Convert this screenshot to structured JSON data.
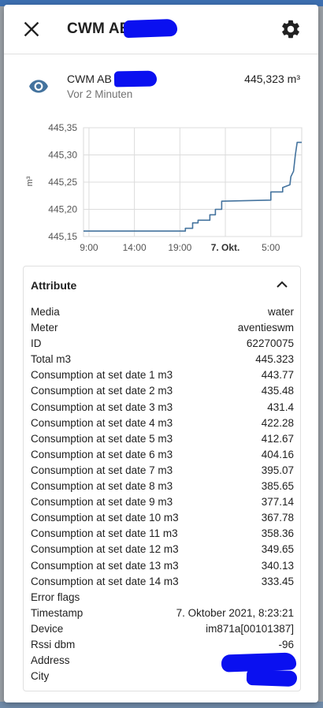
{
  "dialog": {
    "title": "CWM AB",
    "icons": {
      "close": "close-icon",
      "settings": "gear-icon"
    }
  },
  "entity": {
    "name": "CWM AB",
    "last_changed": "Vor 2 Minuten",
    "state": "445,323 m³",
    "icon": "eye-icon"
  },
  "chart_data": {
    "type": "line",
    "ylabel": "m³",
    "ylim": [
      445.15,
      445.35
    ],
    "y_ticks": [
      "445,35",
      "445,30",
      "445,25",
      "445,20",
      "445,15"
    ],
    "x_ticks": [
      "9:00",
      "14:00",
      "19:00",
      "7. Okt.",
      "5:00"
    ],
    "x_ticks_bold": [
      false,
      false,
      false,
      true,
      false
    ],
    "x_tick_hours": [
      0,
      5,
      10,
      15,
      20
    ],
    "xlim_hours": [
      -0.6,
      23.4
    ],
    "series": [
      {
        "color": "#44739e",
        "points": [
          [
            -0.6,
            445.16
          ],
          [
            10.6,
            445.16
          ],
          [
            10.6,
            445.165
          ],
          [
            11.4,
            445.165
          ],
          [
            11.4,
            445.175
          ],
          [
            12.0,
            445.175
          ],
          [
            12.0,
            445.18
          ],
          [
            13.3,
            445.18
          ],
          [
            13.3,
            445.19
          ],
          [
            13.9,
            445.19
          ],
          [
            13.9,
            445.2
          ],
          [
            14.6,
            445.2
          ],
          [
            14.6,
            445.215
          ],
          [
            20.0,
            445.217
          ],
          [
            20.0,
            445.232
          ],
          [
            21.3,
            445.232
          ],
          [
            21.3,
            445.24
          ],
          [
            22.1,
            445.245
          ],
          [
            22.2,
            445.26
          ],
          [
            22.5,
            445.27
          ],
          [
            22.7,
            445.3
          ],
          [
            22.9,
            445.323
          ],
          [
            23.4,
            445.323
          ]
        ]
      }
    ]
  },
  "attributes": {
    "title": "Attribute",
    "rows": [
      {
        "key": "Media",
        "value": "water"
      },
      {
        "key": "Meter",
        "value": "aventieswm"
      },
      {
        "key": "ID",
        "value": "62270075"
      },
      {
        "key": "Total m3",
        "value": "445.323"
      },
      {
        "key": "Consumption at set date 1 m3",
        "value": "443.77"
      },
      {
        "key": "Consumption at set date 2 m3",
        "value": "435.48"
      },
      {
        "key": "Consumption at set date 3 m3",
        "value": "431.4"
      },
      {
        "key": "Consumption at set date 4 m3",
        "value": "422.28"
      },
      {
        "key": "Consumption at set date 5 m3",
        "value": "412.67"
      },
      {
        "key": "Consumption at set date 6 m3",
        "value": "404.16"
      },
      {
        "key": "Consumption at set date 7 m3",
        "value": "395.07"
      },
      {
        "key": "Consumption at set date 8 m3",
        "value": "385.65"
      },
      {
        "key": "Consumption at set date 9 m3",
        "value": "377.14"
      },
      {
        "key": "Consumption at set date 10 m3",
        "value": "367.78"
      },
      {
        "key": "Consumption at set date 11 m3",
        "value": "358.36"
      },
      {
        "key": "Consumption at set date 12 m3",
        "value": "349.65"
      },
      {
        "key": "Consumption at set date 13 m3",
        "value": "340.13"
      },
      {
        "key": "Consumption at set date 14 m3",
        "value": "333.45"
      },
      {
        "key": "Error flags",
        "value": ""
      },
      {
        "key": "Timestamp",
        "value": "7. Oktober 2021, 8:23:21"
      },
      {
        "key": "Device",
        "value": "im871a[00101387]"
      },
      {
        "key": "Rssi dbm",
        "value": "-96"
      },
      {
        "key": "Address",
        "value": ""
      },
      {
        "key": "City",
        "value": ""
      }
    ]
  },
  "colors": {
    "accent": "#44739e",
    "redaction": "#0a10f0"
  }
}
